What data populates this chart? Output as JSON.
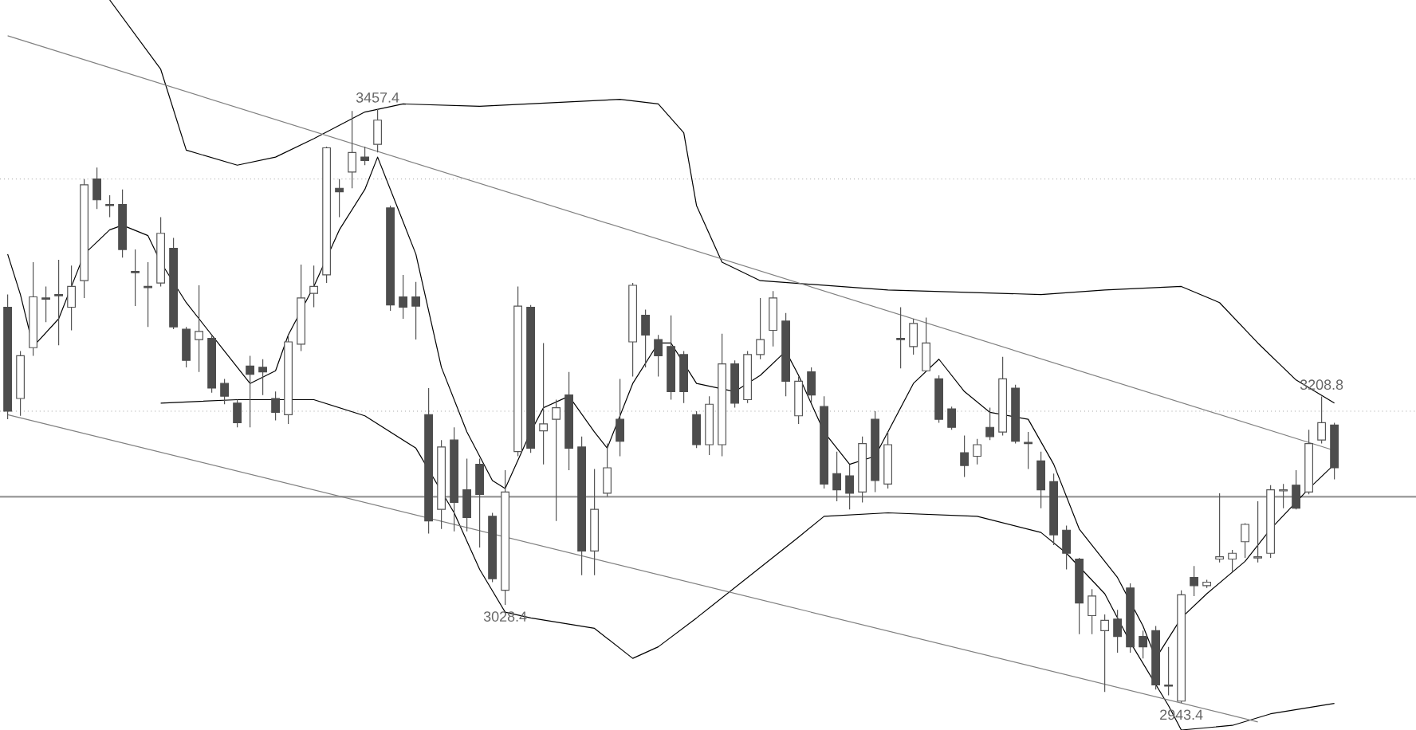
{
  "chart_data": {
    "type": "candlestick",
    "categories": [
      null,
      null,
      null,
      null,
      null,
      null,
      null,
      null,
      null,
      null,
      null,
      null,
      null,
      null,
      null,
      null,
      null,
      null,
      null,
      null,
      null,
      null,
      null,
      null,
      null,
      null,
      null,
      null,
      null,
      null,
      null,
      null,
      null,
      null,
      null,
      null,
      null,
      null,
      null,
      null,
      null,
      null,
      null,
      null,
      null,
      null,
      null,
      null,
      null,
      null,
      null,
      null,
      null,
      null,
      null,
      null,
      null,
      null,
      null,
      null,
      null,
      null,
      null,
      null,
      null,
      null,
      null,
      null,
      null,
      null,
      null,
      null,
      null,
      null,
      null,
      null,
      null,
      null,
      null,
      null,
      null,
      null,
      null,
      null,
      null,
      null,
      null,
      null,
      null,
      null,
      null,
      null,
      null,
      null,
      null,
      null,
      null,
      null,
      null,
      null,
      null,
      null,
      null,
      null,
      null
    ],
    "ohlc": [
      [
        3286,
        3297,
        3189,
        3196
      ],
      [
        3207,
        3248,
        3192,
        3244
      ],
      [
        3251,
        3325,
        3244,
        3295
      ],
      [
        3294,
        3304,
        3273,
        3293
      ],
      [
        3297,
        3327,
        3253,
        3296
      ],
      [
        3286,
        3322,
        3266,
        3304
      ],
      [
        3309,
        3397,
        3294,
        3392
      ],
      [
        3397,
        3407,
        3371,
        3379
      ],
      [
        3375,
        3383,
        3364,
        3374
      ],
      [
        3375,
        3388,
        3329,
        3336
      ],
      [
        3317,
        3336,
        3287,
        3316
      ],
      [
        3304,
        3325,
        3269,
        3303
      ],
      [
        3307,
        3364,
        3304,
        3350
      ],
      [
        3337,
        3346,
        3267,
        3269
      ],
      [
        3267,
        3269,
        3234,
        3240
      ],
      [
        3258,
        3305,
        3230,
        3265
      ],
      [
        3259,
        3262,
        3212,
        3216
      ],
      [
        3220,
        3224,
        3202,
        3209
      ],
      [
        3203,
        3206,
        3182,
        3186
      ],
      [
        3235,
        3244,
        3182,
        3228
      ],
      [
        3234,
        3241,
        3210,
        3230
      ],
      [
        3207,
        3213,
        3188,
        3195
      ],
      [
        3193,
        3262,
        3185,
        3256
      ],
      [
        3254,
        3323,
        3248,
        3294
      ],
      [
        3298,
        3322,
        3286,
        3304
      ],
      [
        3314,
        3425,
        3307,
        3424
      ],
      [
        3389,
        3397,
        3364,
        3386
      ],
      [
        3403,
        3456,
        3389,
        3420
      ],
      [
        3416,
        3425,
        3409,
        3413
      ],
      [
        3427,
        3457.4,
        3420,
        3448
      ],
      [
        3372,
        3374,
        3283,
        3288
      ],
      [
        3295,
        3314,
        3276,
        3286
      ],
      [
        3295,
        3308,
        3258,
        3287
      ],
      [
        3193,
        3216,
        3090,
        3101
      ],
      [
        3111,
        3171,
        3094,
        3165
      ],
      [
        3171,
        3182,
        3092,
        3117
      ],
      [
        3128,
        3155,
        3092,
        3104
      ],
      [
        3150,
        3155,
        3078,
        3124
      ],
      [
        3105,
        3108,
        3048,
        3051
      ],
      [
        3041,
        3145,
        3028.4,
        3126
      ],
      [
        3161,
        3304,
        3157,
        3287
      ],
      [
        3286,
        3288,
        3160,
        3164
      ],
      [
        3179,
        3255,
        3150,
        3185
      ],
      [
        3189,
        3206,
        3101,
        3199
      ],
      [
        3210,
        3230,
        3145,
        3164
      ],
      [
        3165,
        3174,
        3054,
        3075
      ],
      [
        3075,
        3146,
        3054,
        3111
      ],
      [
        3125,
        3168,
        3122,
        3147
      ],
      [
        3189,
        3224,
        3157,
        3170
      ],
      [
        3256,
        3307,
        3226,
        3305
      ],
      [
        3279,
        3284,
        3234,
        3262
      ],
      [
        3258,
        3262,
        3226,
        3244
      ],
      [
        3252,
        3279,
        3206,
        3213
      ],
      [
        3245,
        3248,
        3203,
        3213
      ],
      [
        3193,
        3196,
        3164,
        3167
      ],
      [
        3167,
        3209,
        3158,
        3202
      ],
      [
        3167,
        3263,
        3157,
        3237
      ],
      [
        3237,
        3240,
        3199,
        3203
      ],
      [
        3206,
        3248,
        3203,
        3245
      ],
      [
        3245,
        3294,
        3241,
        3258
      ],
      [
        3266,
        3300,
        3252,
        3294
      ],
      [
        3274,
        3281,
        3209,
        3222
      ],
      [
        3192,
        3226,
        3185,
        3222
      ],
      [
        3230,
        3234,
        3203,
        3210
      ],
      [
        3200,
        3209,
        3129,
        3133
      ],
      [
        3142,
        3161,
        3118,
        3128
      ],
      [
        3140,
        3150,
        3111,
        3125
      ],
      [
        3126,
        3174,
        3117,
        3168
      ],
      [
        3189,
        3196,
        3126,
        3136
      ],
      [
        3133,
        3178,
        3129,
        3167
      ],
      [
        3259,
        3286,
        3233,
        3258
      ],
      [
        3252,
        3276,
        3245,
        3272
      ],
      [
        3231,
        3277,
        3230,
        3255
      ],
      [
        3224,
        3227,
        3186,
        3189
      ],
      [
        3198,
        3200,
        3180,
        3182
      ],
      [
        3160,
        3175,
        3139,
        3149
      ],
      [
        3157,
        3172,
        3150,
        3167
      ],
      [
        3182,
        3199,
        3171,
        3174
      ],
      [
        3178,
        3243,
        3175,
        3224
      ],
      [
        3216,
        3219,
        3168,
        3170
      ],
      [
        3169,
        3178,
        3146,
        3168
      ],
      [
        3153,
        3161,
        3112,
        3128
      ],
      [
        3135,
        3142,
        3080,
        3089
      ],
      [
        3093,
        3097,
        3059,
        3073
      ],
      [
        3068,
        3069,
        3003,
        3030
      ],
      [
        3019,
        3042,
        3003,
        3036
      ],
      [
        3006,
        3020,
        2953,
        3015
      ],
      [
        3016,
        3024,
        2987,
        3001
      ],
      [
        3043,
        3047,
        2987,
        2992
      ],
      [
        3001,
        3006,
        2982,
        2992
      ],
      [
        3006,
        3010,
        2955,
        2959
      ],
      [
        2959,
        2992,
        2950,
        2958
      ],
      [
        2945,
        3041,
        2943.4,
        3037
      ],
      [
        3052,
        3062,
        3036,
        3045
      ],
      [
        3045,
        3050,
        3043,
        3048
      ],
      [
        3068,
        3125,
        3065,
        3070
      ],
      [
        3068,
        3076,
        3057,
        3073
      ],
      [
        3083,
        3099,
        3069,
        3098
      ],
      [
        3069,
        3118,
        3065,
        3070
      ],
      [
        3073,
        3132,
        3069,
        3128
      ],
      [
        3127,
        3133,
        3112,
        3128
      ],
      [
        3132,
        3145,
        3111,
        3112
      ],
      [
        3126,
        3180,
        3124,
        3168
      ],
      [
        3171,
        3208.8,
        3168,
        3186
      ],
      [
        3184,
        3186,
        3137,
        3147
      ]
    ],
    "series": [
      {
        "type": "line",
        "color": "#000000",
        "values": [
          null,
          null,
          null,
          null,
          null,
          null,
          null,
          null,
          3552,
          null,
          null,
          null,
          3492,
          null,
          3422,
          null,
          null,
          null,
          3409,
          null,
          null,
          3416,
          null,
          null,
          3432,
          null,
          null,
          null,
          3455,
          null,
          null,
          3462,
          null,
          null,
          null,
          null,
          null,
          3460,
          null,
          null,
          null,
          null,
          null,
          null,
          null,
          null,
          null,
          null,
          3466,
          null,
          null,
          3462,
          null,
          3437,
          3374,
          null,
          3325,
          null,
          null,
          3309,
          null,
          null,
          null,
          null,
          null,
          null,
          null,
          null,
          null,
          3301,
          null,
          null,
          null,
          null,
          null,
          null,
          null,
          null,
          null,
          null,
          null,
          3297,
          null,
          null,
          null,
          null,
          3301,
          null,
          null,
          null,
          null,
          null,
          3304,
          null,
          null,
          3290,
          null,
          null,
          3255,
          null,
          null,
          3223,
          null,
          null,
          3203
        ]
      },
      {
        "type": "line",
        "color": "#000000",
        "values": [
          null,
          null,
          null,
          null,
          null,
          null,
          null,
          null,
          null,
          null,
          null,
          null,
          3203,
          null,
          null,
          null,
          null,
          null,
          3206,
          null,
          null,
          null,
          null,
          null,
          3206,
          null,
          null,
          null,
          3192,
          null,
          null,
          null,
          3164,
          null,
          null,
          3108,
          null,
          3059,
          null,
          3022,
          null,
          3017,
          null,
          null,
          null,
          null,
          3008,
          null,
          null,
          2982,
          null,
          2992,
          null,
          null,
          3017,
          null,
          null,
          null,
          3052,
          null,
          null,
          null,
          3087,
          null,
          3105,
          null,
          null,
          null,
          null,
          3108,
          null,
          null,
          null,
          null,
          null,
          null,
          3105,
          null,
          null,
          null,
          null,
          3091,
          null,
          3073,
          null,
          null,
          3038,
          null,
          2996,
          null,
          null,
          2941,
          2920,
          null,
          null,
          null,
          2924,
          null,
          null,
          2934,
          null,
          null,
          null,
          null,
          2943
        ]
      },
      {
        "type": "line",
        "color": "#000000",
        "values": [
          3332,
          3297,
          3252,
          null,
          3276,
          null,
          3332,
          null,
          3353,
          3357,
          null,
          3348,
          3325,
          null,
          3290,
          null,
          null,
          3248,
          null,
          3220,
          null,
          3231,
          3262,
          null,
          3304,
          null,
          3353,
          null,
          3388,
          3416,
          null,
          null,
          3332,
          null,
          3234,
          null,
          3178,
          null,
          3136,
          3129,
          null,
          3178,
          3199,
          null,
          3209,
          null,
          3178,
          3164,
          null,
          3220,
          null,
          3255,
          3255,
          null,
          3220,
          null,
          null,
          3213,
          null,
          3227,
          null,
          3248,
          3227,
          null,
          3178,
          null,
          3150,
          null,
          3157,
          null,
          null,
          3220,
          null,
          3241,
          null,
          3213,
          null,
          3195,
          null,
          null,
          3189,
          null,
          3150,
          null,
          3094,
          null,
          null,
          3052,
          null,
          3010,
          2982,
          null,
          3017,
          null,
          3038,
          null,
          null,
          3066,
          null,
          3094,
          null,
          null,
          3129,
          null,
          3150
        ]
      },
      {
        "type": "line",
        "color": "#808080",
        "values": [
          3521,
          null,
          null,
          null,
          null,
          null,
          null,
          null,
          null,
          null,
          null,
          null,
          null,
          null,
          null,
          null,
          null,
          null,
          null,
          null,
          null,
          null,
          null,
          null,
          null,
          null,
          null,
          null,
          null,
          null,
          null,
          null,
          null,
          null,
          null,
          null,
          null,
          null,
          null,
          null,
          null,
          null,
          null,
          null,
          null,
          null,
          null,
          null,
          null,
          null,
          null,
          null,
          null,
          null,
          null,
          null,
          null,
          null,
          null,
          null,
          null,
          null,
          null,
          null,
          null,
          null,
          null,
          null,
          null,
          null,
          null,
          null,
          null,
          null,
          null,
          null,
          null,
          null,
          null,
          null,
          null,
          null,
          null,
          null,
          null,
          null,
          null,
          null,
          null,
          null,
          null,
          null,
          null,
          null,
          null,
          null,
          null,
          null,
          null,
          null,
          null,
          null,
          null,
          null,
          3162
        ]
      },
      {
        "type": "line",
        "color": "#808080",
        "values": [
          3193,
          null,
          null,
          null,
          null,
          null,
          null,
          null,
          null,
          null,
          null,
          null,
          null,
          null,
          null,
          null,
          null,
          null,
          null,
          null,
          null,
          null,
          null,
          null,
          null,
          null,
          null,
          null,
          null,
          null,
          null,
          null,
          null,
          null,
          null,
          null,
          null,
          null,
          null,
          null,
          null,
          null,
          null,
          null,
          null,
          null,
          null,
          null,
          null,
          null,
          null,
          null,
          null,
          null,
          null,
          null,
          null,
          null,
          null,
          null,
          null,
          null,
          null,
          null,
          null,
          null,
          null,
          null,
          null,
          null,
          null,
          null,
          null,
          null,
          null,
          null,
          null,
          null,
          null,
          null,
          null,
          null,
          null,
          null,
          null,
          null,
          null,
          null,
          null,
          null,
          null,
          null,
          null,
          null,
          null,
          null,
          null,
          null,
          2927,
          null,
          null,
          null,
          null,
          null,
          null
        ]
      }
    ],
    "ref_lines": [
      {
        "axis": "y",
        "value": 3397,
        "line_style": "dotted",
        "color": "#a0a0a0"
      },
      {
        "axis": "y",
        "value": 3196,
        "line_style": "dotted",
        "color": "#a0a0a0"
      },
      {
        "axis": "y",
        "value": 3122,
        "line_style": "solid",
        "color": "#a0a0a0"
      }
    ],
    "annotations": [
      {
        "text": "3457.4",
        "y": 3457.4
      },
      {
        "text": "3028.4",
        "y": 3028.4
      },
      {
        "text": "2943.4",
        "y": 2943.4
      },
      {
        "text": "3208.8",
        "y": 3208.8
      }
    ],
    "tick_labels": false
  }
}
